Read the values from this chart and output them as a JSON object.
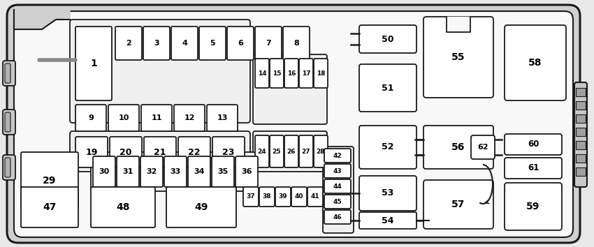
{
  "bg_color": "#e8e8e8",
  "box_color": "#ffffff",
  "border_color": "#1a1a1a",
  "text_color": "#000000",
  "fig_w": 8.5,
  "fig_h": 3.54,
  "dpi": 100
}
